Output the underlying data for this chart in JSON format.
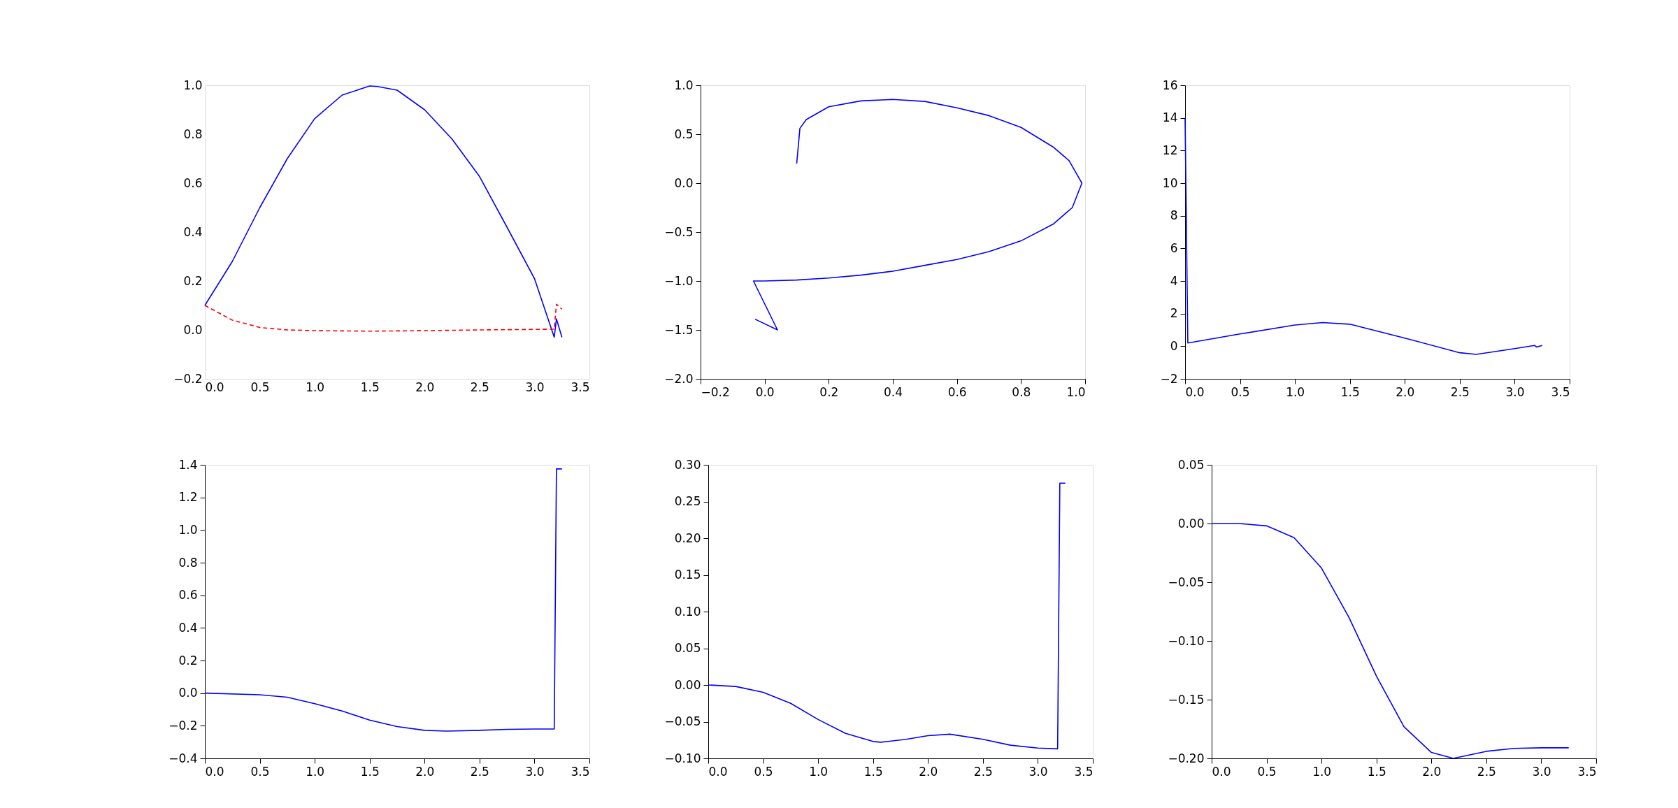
{
  "chart_data": [
    {
      "type": "line",
      "xlim": [
        0,
        3.5
      ],
      "ylim": [
        -0.2,
        1.0
      ],
      "xticks": [
        {
          "value": 0,
          "label": "0.0"
        },
        0.5,
        {
          "value": 1,
          "label": "1.0"
        },
        1.5,
        {
          "value": 2,
          "label": "2.0"
        },
        2.5,
        {
          "value": 3,
          "label": "3.0"
        },
        3.5
      ],
      "yticks": [
        {
          "value": -0.2,
          "label": "−0.2"
        },
        {
          "value": 0,
          "label": "0.0"
        },
        0.2,
        0.4,
        0.6,
        0.8,
        {
          "value": 1,
          "label": "1.0"
        }
      ],
      "grid": false,
      "marker": "none",
      "series": [
        {
          "color": "#0000ff",
          "line_style": "solid",
          "x": [
            0,
            0.25,
            0.5,
            0.75,
            1.0,
            1.25,
            1.5,
            1.57,
            1.75,
            2.0,
            2.25,
            2.5,
            2.75,
            3.0,
            3.18,
            3.2,
            3.25
          ],
          "values": [
            0.1,
            0.28,
            0.5,
            0.7,
            0.864,
            0.96,
            0.997,
            0.995,
            0.98,
            0.9,
            0.78,
            0.627,
            0.42,
            0.21,
            -0.03,
            0.045,
            -0.03
          ]
        },
        {
          "color": "#ff0000",
          "line_style": "dashed",
          "x": [
            0,
            0.25,
            0.5,
            0.75,
            1.0,
            1.5,
            2.0,
            2.5,
            3.0,
            3.18,
            3.2,
            3.25
          ],
          "values": [
            0.1,
            0.04,
            0.01,
            0.0,
            -0.003,
            -0.005,
            -0.003,
            0.0,
            0.002,
            0.003,
            0.105,
            0.085
          ]
        }
      ]
    },
    {
      "type": "line",
      "xlim": [
        -0.2,
        1.0
      ],
      "ylim": [
        -2.0,
        1.0
      ],
      "xticks": [
        {
          "value": -0.2,
          "label": "−0.2"
        },
        {
          "value": 0,
          "label": "0.0"
        },
        0.2,
        0.4,
        0.6,
        0.8,
        {
          "value": 1,
          "label": "1.0"
        }
      ],
      "yticks": [
        {
          "value": -2,
          "label": "−2.0"
        },
        {
          "value": -1.5,
          "label": "−1.5"
        },
        {
          "value": -1,
          "label": "−1.0"
        },
        {
          "value": -0.5,
          "label": "−0.5"
        },
        {
          "value": 0,
          "label": "0.0"
        },
        0.5,
        {
          "value": 1,
          "label": "1.0"
        }
      ],
      "grid": false,
      "marker": "none",
      "series": [
        {
          "color": "#0000ff",
          "line_style": "solid",
          "x": [
            0.1,
            0.11,
            0.13,
            0.2,
            0.3,
            0.4,
            0.5,
            0.6,
            0.7,
            0.8,
            0.9,
            0.95,
            0.99,
            0.96,
            0.9,
            0.8,
            0.7,
            0.6,
            0.5,
            0.4,
            0.3,
            0.2,
            0.1,
            0.0,
            -0.035,
            0.04,
            -0.03
          ],
          "values": [
            0.2,
            0.56,
            0.65,
            0.78,
            0.84,
            0.855,
            0.835,
            0.77,
            0.69,
            0.57,
            0.37,
            0.23,
            0.0,
            -0.25,
            -0.42,
            -0.59,
            -0.7,
            -0.78,
            -0.84,
            -0.9,
            -0.94,
            -0.97,
            -0.99,
            -1.0,
            -1.0,
            -1.5,
            -1.39
          ]
        }
      ]
    },
    {
      "type": "line",
      "xlim": [
        0,
        3.5
      ],
      "ylim": [
        -2,
        16
      ],
      "xticks": [
        {
          "value": 0,
          "label": "0.0"
        },
        0.5,
        {
          "value": 1,
          "label": "1.0"
        },
        1.5,
        {
          "value": 2,
          "label": "2.0"
        },
        2.5,
        {
          "value": 3,
          "label": "3.0"
        },
        3.5
      ],
      "yticks": [
        {
          "value": -2,
          "label": "−2"
        },
        0,
        2,
        4,
        6,
        8,
        10,
        12,
        14,
        16
      ],
      "grid": false,
      "marker": "none",
      "series": [
        {
          "color": "#0000ff",
          "line_style": "solid",
          "x": [
            0,
            0.025,
            0.5,
            1.0,
            1.25,
            1.5,
            2.0,
            2.5,
            2.65,
            3.0,
            3.18,
            3.2,
            3.25
          ],
          "values": [
            14,
            0.2,
            0.75,
            1.3,
            1.45,
            1.35,
            0.5,
            -0.4,
            -0.5,
            -0.15,
            0.05,
            -0.05,
            0.05
          ]
        }
      ]
    },
    {
      "type": "line",
      "xlim": [
        0,
        3.5
      ],
      "ylim": [
        -0.4,
        1.4
      ],
      "xticks": [
        {
          "value": 0,
          "label": "0.0"
        },
        0.5,
        {
          "value": 1,
          "label": "1.0"
        },
        1.5,
        {
          "value": 2,
          "label": "2.0"
        },
        2.5,
        {
          "value": 3,
          "label": "3.0"
        },
        3.5
      ],
      "yticks": [
        {
          "value": -0.4,
          "label": "−0.4"
        },
        {
          "value": -0.2,
          "label": "−0.2"
        },
        {
          "value": 0,
          "label": "0.0"
        },
        0.2,
        0.4,
        0.6,
        0.8,
        {
          "value": 1,
          "label": "1.0"
        },
        1.2,
        1.4
      ],
      "grid": false,
      "marker": "none",
      "series": [
        {
          "color": "#0000ff",
          "line_style": "solid",
          "x": [
            0,
            0.5,
            0.75,
            1.0,
            1.25,
            1.5,
            1.75,
            2.0,
            2.2,
            2.5,
            2.75,
            3.0,
            3.18,
            3.2,
            3.25
          ],
          "values": [
            0,
            -0.01,
            -0.025,
            -0.065,
            -0.11,
            -0.165,
            -0.205,
            -0.228,
            -0.233,
            -0.228,
            -0.222,
            -0.22,
            -0.22,
            1.375,
            1.375
          ]
        }
      ]
    },
    {
      "type": "line",
      "xlim": [
        0,
        3.5
      ],
      "ylim": [
        -0.1,
        0.3
      ],
      "xticks": [
        {
          "value": 0,
          "label": "0.0"
        },
        0.5,
        {
          "value": 1,
          "label": "1.0"
        },
        1.5,
        {
          "value": 2,
          "label": "2.0"
        },
        2.5,
        {
          "value": 3,
          "label": "3.0"
        },
        3.5
      ],
      "yticks": [
        {
          "value": -0.1,
          "label": "−0.10"
        },
        {
          "value": -0.05,
          "label": "−0.05"
        },
        {
          "value": 0,
          "label": "0.00"
        },
        0.05,
        {
          "value": 0.1,
          "label": "0.10"
        },
        0.15,
        {
          "value": 0.2,
          "label": "0.20"
        },
        0.25,
        {
          "value": 0.3,
          "label": "0.30"
        }
      ],
      "grid": false,
      "marker": "none",
      "series": [
        {
          "color": "#0000ff",
          "line_style": "solid",
          "x": [
            0,
            0.25,
            0.5,
            0.75,
            1.0,
            1.25,
            1.5,
            1.57,
            1.8,
            2.0,
            2.2,
            2.5,
            2.75,
            3.0,
            3.18,
            3.2,
            3.25
          ],
          "values": [
            0,
            -0.002,
            -0.01,
            -0.025,
            -0.047,
            -0.066,
            -0.077,
            -0.078,
            -0.074,
            -0.069,
            -0.067,
            -0.074,
            -0.082,
            -0.086,
            -0.087,
            0.275,
            0.275
          ]
        }
      ]
    },
    {
      "type": "line",
      "xlim": [
        0,
        3.5
      ],
      "ylim": [
        -0.2,
        0.05
      ],
      "xticks": [
        {
          "value": 0,
          "label": "0.0"
        },
        0.5,
        {
          "value": 1,
          "label": "1.0"
        },
        1.5,
        {
          "value": 2,
          "label": "2.0"
        },
        2.5,
        {
          "value": 3,
          "label": "3.0"
        },
        3.5
      ],
      "yticks": [
        {
          "value": -0.2,
          "label": "−0.20"
        },
        {
          "value": -0.15,
          "label": "−0.15"
        },
        {
          "value": -0.1,
          "label": "−0.10"
        },
        {
          "value": -0.05,
          "label": "−0.05"
        },
        {
          "value": 0,
          "label": "0.00"
        },
        0.05
      ],
      "grid": false,
      "marker": "none",
      "series": [
        {
          "color": "#0000ff",
          "line_style": "solid",
          "x": [
            0,
            0.25,
            0.5,
            0.75,
            1.0,
            1.25,
            1.5,
            1.75,
            2.0,
            2.2,
            2.5,
            2.75,
            3.0,
            3.25
          ],
          "values": [
            0,
            0,
            -0.002,
            -0.012,
            -0.038,
            -0.08,
            -0.13,
            -0.173,
            -0.195,
            -0.2,
            -0.194,
            -0.1915,
            -0.191,
            -0.191
          ]
        }
      ]
    }
  ]
}
